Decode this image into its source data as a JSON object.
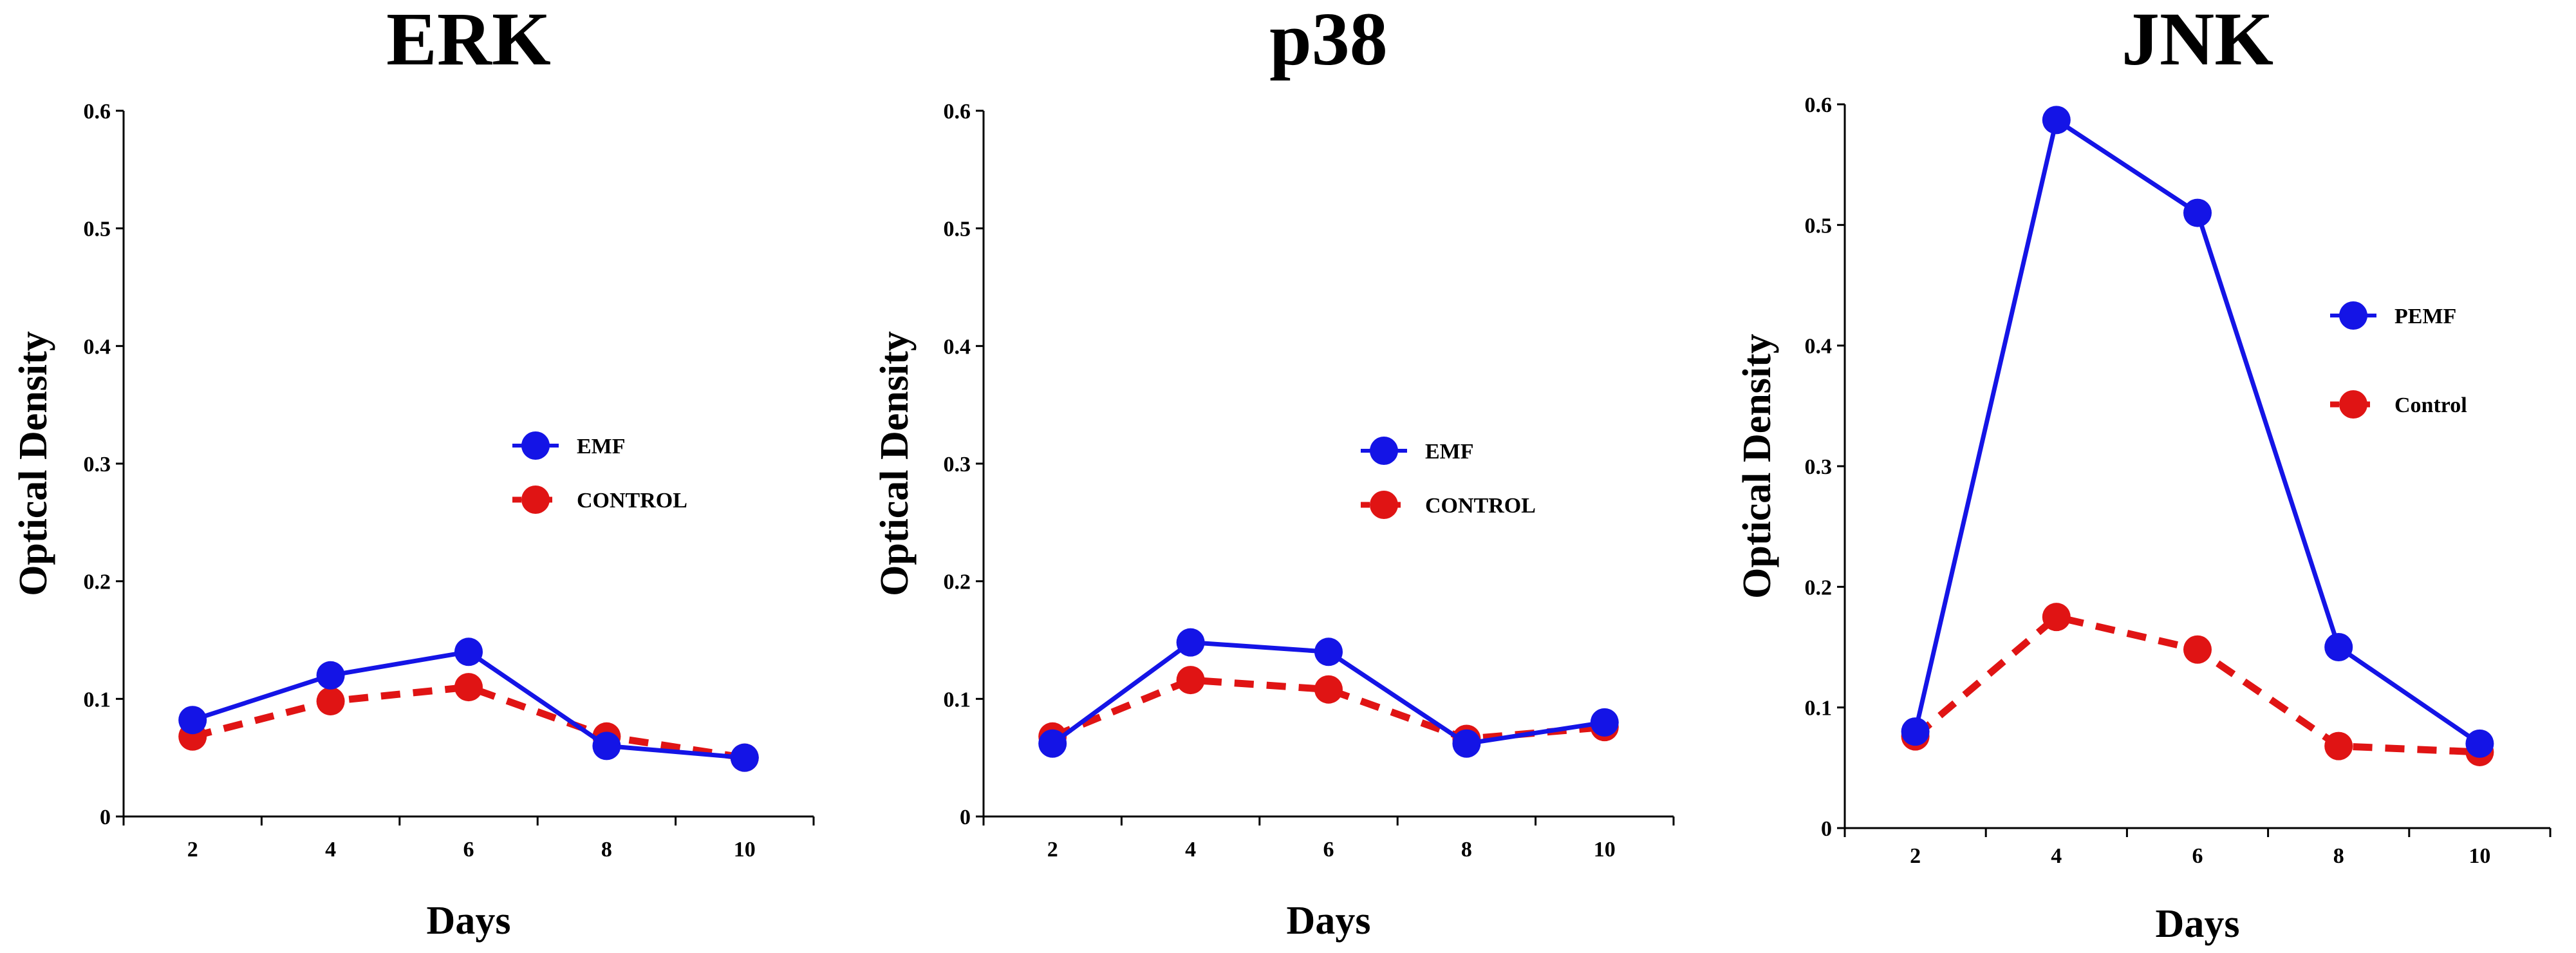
{
  "figure": {
    "shared_ylabel": "Optical Density",
    "shared_xlabel": "Days"
  },
  "colors": {
    "series_primary": "#1414e6",
    "series_control": "#e01414",
    "axis": "#000000",
    "text": "#000000"
  },
  "chart_data": [
    {
      "type": "line",
      "title": "ERK",
      "xlabel": "Days",
      "ylabel": "Optical Density",
      "x": [
        2,
        4,
        6,
        8,
        10
      ],
      "x_tick_labels": [
        "2",
        "4",
        "6",
        "8",
        "10"
      ],
      "y_tick_labels": [
        "0",
        "0.1",
        "0.2",
        "0.3",
        "0.4",
        "0.5",
        "0.6"
      ],
      "ylim": [
        0,
        0.6
      ],
      "grid": false,
      "legend_position": "center-right",
      "series": [
        {
          "name": "EMF",
          "style": "solid",
          "values": [
            0.082,
            0.12,
            0.14,
            0.06,
            0.05
          ]
        },
        {
          "name": "CONTROL",
          "style": "dashed",
          "values": [
            0.068,
            0.098,
            0.11,
            0.068,
            0.05
          ]
        }
      ]
    },
    {
      "type": "line",
      "title": "p38",
      "xlabel": "Days",
      "ylabel": "Optical Density",
      "x": [
        2,
        4,
        6,
        8,
        10
      ],
      "x_tick_labels": [
        "2",
        "4",
        "6",
        "8",
        "10"
      ],
      "y_tick_labels": [
        "0",
        "0.1",
        "0.2",
        "0.3",
        "0.4",
        "0.5",
        "0.6"
      ],
      "ylim": [
        0,
        0.6
      ],
      "grid": false,
      "legend_position": "center-right",
      "series": [
        {
          "name": "EMF",
          "style": "solid",
          "values": [
            0.062,
            0.148,
            0.14,
            0.062,
            0.08
          ]
        },
        {
          "name": "CONTROL",
          "style": "dashed",
          "values": [
            0.068,
            0.116,
            0.108,
            0.066,
            0.076
          ]
        }
      ]
    },
    {
      "type": "line",
      "title": "JNK",
      "xlabel": "Days",
      "ylabel": "Optical Density",
      "x": [
        2,
        4,
        6,
        8,
        10
      ],
      "x_tick_labels": [
        "2",
        "4",
        "6",
        "8",
        "10"
      ],
      "y_tick_labels": [
        "0",
        "0.1",
        "0.2",
        "0.3",
        "0.4",
        "0.5",
        "0.6"
      ],
      "ylim": [
        0,
        0.6
      ],
      "grid": false,
      "legend_position": "upper-right",
      "series": [
        {
          "name": "PEMF",
          "style": "solid",
          "values": [
            0.08,
            0.587,
            0.51,
            0.15,
            0.07
          ]
        },
        {
          "name": "Control",
          "style": "dashed",
          "values": [
            0.076,
            0.175,
            0.148,
            0.068,
            0.063
          ]
        }
      ]
    }
  ]
}
